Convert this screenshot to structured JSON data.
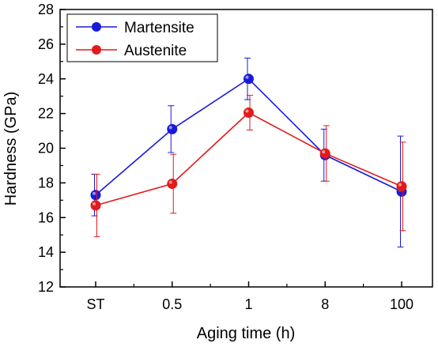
{
  "chart_data": {
    "type": "line",
    "categories": [
      "ST",
      "0.5",
      "1",
      "8",
      "100"
    ],
    "xlabel": "Aging time (h)",
    "ylabel": "Hardness (GPa)",
    "ylim": [
      12,
      28
    ],
    "yticks": [
      12,
      14,
      16,
      18,
      20,
      22,
      24,
      26,
      28
    ],
    "grid": false,
    "legend_position": "top-left",
    "series": [
      {
        "name": "Martensite",
        "color": "#1a1adb",
        "values": [
          17.3,
          21.1,
          24.0,
          19.6,
          17.5
        ],
        "errors": [
          1.2,
          1.35,
          1.2,
          1.5,
          3.2
        ]
      },
      {
        "name": "Austenite",
        "color": "#e31a1a",
        "values": [
          16.7,
          17.95,
          22.05,
          19.7,
          17.8
        ],
        "errors": [
          1.8,
          1.7,
          1.0,
          1.6,
          2.55
        ]
      }
    ]
  }
}
